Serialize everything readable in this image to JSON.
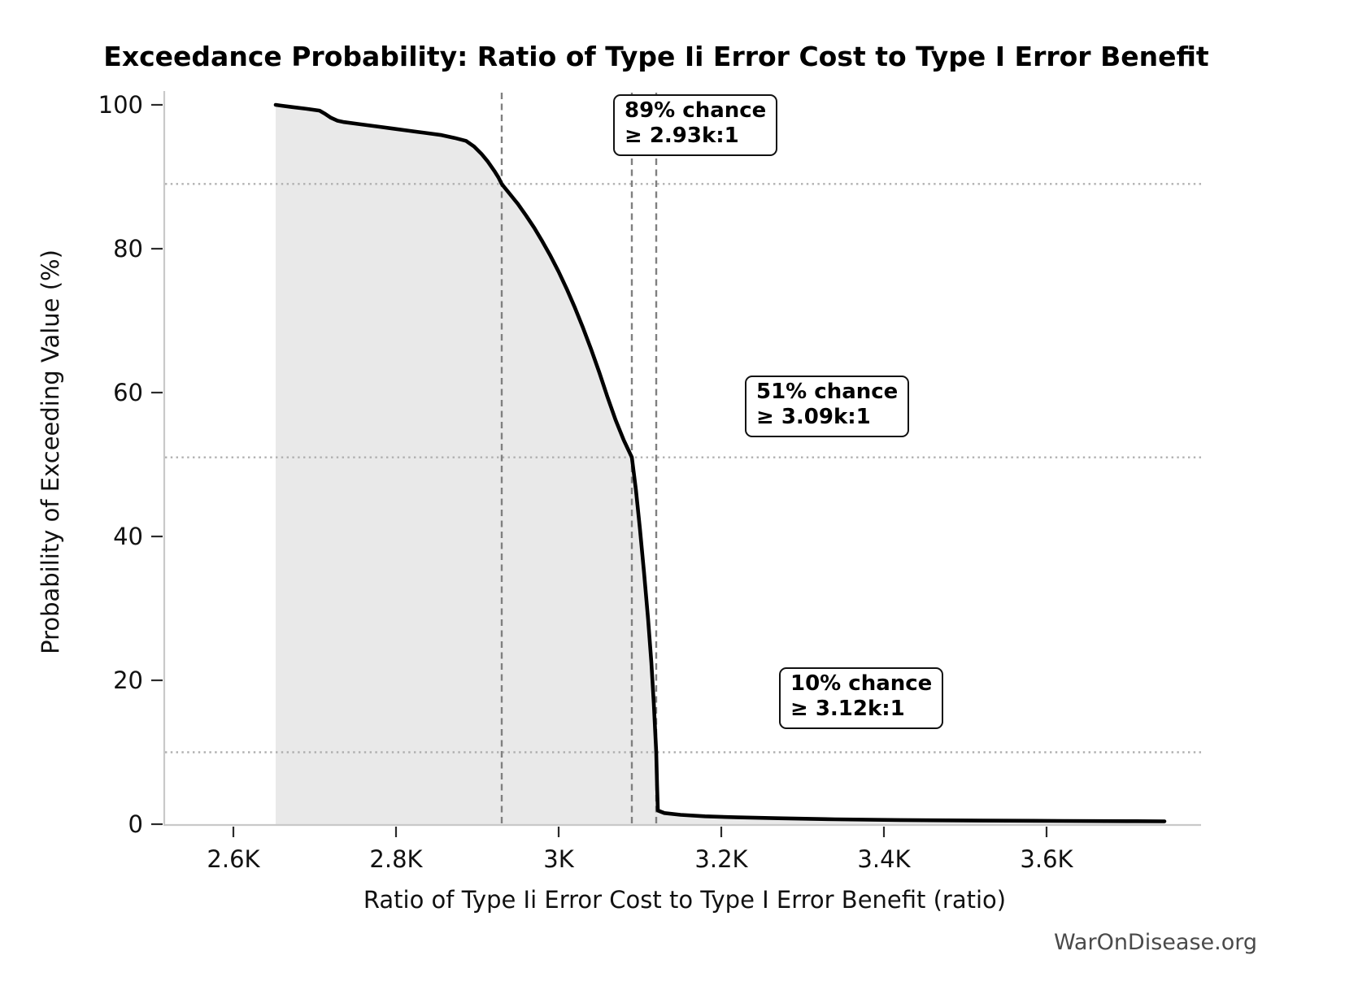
{
  "watermark": "WarOnDisease.org",
  "chart_data": {
    "type": "area",
    "title": "Exceedance Probability: Ratio of Type Ii Error Cost to Type I Error Benefit",
    "xlabel": "Ratio of Type Ii Error Cost to Type I Error Benefit (ratio)",
    "ylabel": "Probability of Exceeding Value (%)",
    "xlim": [
      2515,
      3790
    ],
    "ylim": [
      0,
      100
    ],
    "x_ticks": [
      {
        "value": 2600,
        "label": "2.6K"
      },
      {
        "value": 2800,
        "label": "2.8K"
      },
      {
        "value": 3000,
        "label": "3K"
      },
      {
        "value": 3200,
        "label": "3.2K"
      },
      {
        "value": 3400,
        "label": "3.4K"
      },
      {
        "value": 3600,
        "label": "3.6K"
      }
    ],
    "y_ticks": [
      {
        "value": 0,
        "label": "0"
      },
      {
        "value": 20,
        "label": "20"
      },
      {
        "value": 40,
        "label": "40"
      },
      {
        "value": 60,
        "label": "60"
      },
      {
        "value": 80,
        "label": "80"
      },
      {
        "value": 100,
        "label": "100"
      }
    ],
    "grid": false,
    "legend": "none",
    "series": [
      {
        "name": "exceedance-curve",
        "points": [
          [
            2652,
            100
          ],
          [
            2658,
            99.9
          ],
          [
            2672,
            99.7
          ],
          [
            2690,
            99.45
          ],
          [
            2706,
            99.2
          ],
          [
            2712,
            98.8
          ],
          [
            2720,
            98.2
          ],
          [
            2728,
            97.8
          ],
          [
            2736,
            97.6
          ],
          [
            2756,
            97.3
          ],
          [
            2776,
            97.0
          ],
          [
            2796,
            96.7
          ],
          [
            2816,
            96.4
          ],
          [
            2836,
            96.1
          ],
          [
            2856,
            95.8
          ],
          [
            2872,
            95.4
          ],
          [
            2886,
            95.0
          ],
          [
            2896,
            94.2
          ],
          [
            2905,
            93.2
          ],
          [
            2913,
            92.1
          ],
          [
            2921,
            90.8
          ],
          [
            2926,
            89.9
          ],
          [
            2930,
            89.0
          ],
          [
            2940,
            87.6
          ],
          [
            2950,
            86.2
          ],
          [
            2960,
            84.6
          ],
          [
            2970,
            82.9
          ],
          [
            2980,
            81.0
          ],
          [
            2990,
            79.0
          ],
          [
            3000,
            76.8
          ],
          [
            3010,
            74.4
          ],
          [
            3020,
            71.8
          ],
          [
            3030,
            69.0
          ],
          [
            3040,
            66.0
          ],
          [
            3050,
            62.8
          ],
          [
            3060,
            59.4
          ],
          [
            3070,
            56.2
          ],
          [
            3080,
            53.4
          ],
          [
            3090,
            51.0
          ],
          [
            3095,
            46.5
          ],
          [
            3100,
            41.0
          ],
          [
            3105,
            35.0
          ],
          [
            3110,
            28.5
          ],
          [
            3114,
            22.5
          ],
          [
            3117,
            16.8
          ],
          [
            3120,
            10.0
          ],
          [
            3121,
            5.5
          ],
          [
            3122,
            1.9
          ],
          [
            3130,
            1.55
          ],
          [
            3150,
            1.3
          ],
          [
            3180,
            1.1
          ],
          [
            3220,
            0.95
          ],
          [
            3270,
            0.82
          ],
          [
            3340,
            0.68
          ],
          [
            3420,
            0.58
          ],
          [
            3520,
            0.5
          ],
          [
            3620,
            0.45
          ],
          [
            3700,
            0.42
          ],
          [
            3745,
            0.4
          ]
        ]
      }
    ],
    "reference_lines": {
      "vertical_dashed_x": [
        2930,
        3090,
        3120
      ],
      "horizontal_dotted_y": [
        89,
        51,
        10
      ]
    },
    "annotations": [
      {
        "line1": "89% chance",
        "line2": "≥ 2.93k:1",
        "chance_pct": 89,
        "threshold_ratio": "2.93k:1"
      },
      {
        "line1": "51% chance",
        "line2": "≥ 3.09k:1",
        "chance_pct": 51,
        "threshold_ratio": "3.09k:1"
      },
      {
        "line1": "10% chance",
        "line2": "≥ 3.12k:1",
        "chance_pct": 10,
        "threshold_ratio": "3.12k:1"
      }
    ],
    "colors": {
      "curve": "#000000",
      "fill": "#e9e9e9",
      "dashed_line": "#808080",
      "dotted_line": "#b0b0b0",
      "spine": "#c9c9c9",
      "tick": "#2b2b2b",
      "text": "#111111",
      "watermark": "#4a4a4a"
    }
  }
}
